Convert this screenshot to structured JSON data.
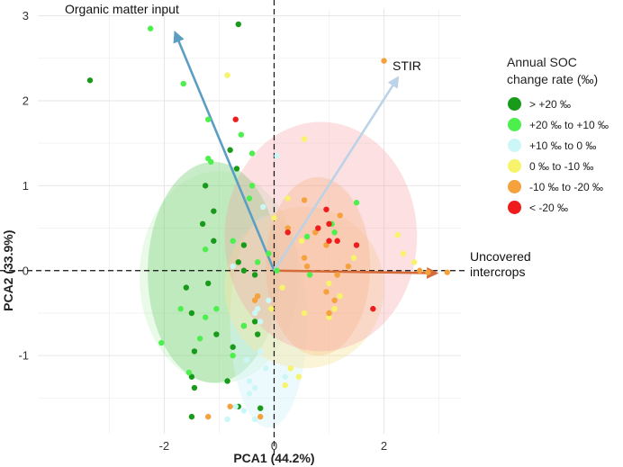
{
  "chart_data": {
    "type": "scatter",
    "subtype": "pca-biplot",
    "xlabel": "PCA1 (44.2%)",
    "ylabel": "PCA2 (33.9%)",
    "xlim": [
      -4.3,
      3.4
    ],
    "ylim": [
      -1.92,
      3.08
    ],
    "xticks": [
      -2,
      0,
      2
    ],
    "yticks": [
      -1,
      0,
      1,
      2,
      3
    ],
    "grid": true,
    "reference_lines": {
      "x": 0,
      "y": 0,
      "style": "dashed"
    },
    "legend": {
      "title_lines": [
        "Annual SOC",
        "change rate (‰)"
      ],
      "position": "right",
      "entries": [
        {
          "label": "> +20 ‰",
          "color": "#1a9a1a"
        },
        {
          "label": "+20 ‰ to +10 ‰",
          "color": "#4cef4c"
        },
        {
          "label": "+10 ‰ to 0 ‰",
          "color": "#ccf7f7"
        },
        {
          "label": "0 ‰ to -10 ‰",
          "color": "#f7f36a"
        },
        {
          "label": "-10 ‰ to -20 ‰",
          "color": "#f5a13c"
        },
        {
          "label": "< -20 ‰",
          "color": "#ee1c1c"
        }
      ]
    },
    "vectors": [
      {
        "label_lines": [
          "Organic matter input"
        ],
        "x0": 0,
        "y0": 0,
        "x1": -1.8,
        "y1": 2.8,
        "color": "#5b9ec3"
      },
      {
        "label_lines": [
          "STIR"
        ],
        "x0": 0,
        "y0": 0,
        "x1": 2.25,
        "y1": 2.27,
        "color": "#bcd2e6"
      },
      {
        "label_lines": [
          "Uncovered",
          "intercrops"
        ],
        "x0": 0,
        "y0": 0,
        "x1": 2.95,
        "y1": -0.03,
        "color": "#d66b3a"
      }
    ],
    "ellipses": [
      {
        "group": "> +20 ‰",
        "cx": -1.1,
        "cy": -0.02,
        "rx": 1.2,
        "ry": 1.3,
        "color": "#55c255",
        "opacity": 0.32
      },
      {
        "group": "+20 ‰ to +10 ‰",
        "cx": -1.0,
        "cy": -0.08,
        "rx": 1.45,
        "ry": 1.25,
        "color": "#9be89b",
        "opacity": 0.22
      },
      {
        "group": "+10 ‰ to 0 ‰",
        "cx": -0.1,
        "cy": -0.6,
        "rx": 0.7,
        "ry": 1.25,
        "color": "#d8f4fb",
        "opacity": 0.45
      },
      {
        "group": "0 ‰ to -10 ‰",
        "cx": 0.55,
        "cy": -0.2,
        "rx": 1.45,
        "ry": 0.95,
        "color": "#f6e7a6",
        "opacity": 0.45
      },
      {
        "group": "-10 ‰ to -20 ‰",
        "cx": 0.8,
        "cy": 0.05,
        "rx": 0.95,
        "ry": 1.05,
        "color": "#f7c58c",
        "opacity": 0.42
      },
      {
        "group": "< -20 ‰",
        "cx": 0.85,
        "cy": 0.4,
        "rx": 1.75,
        "ry": 1.35,
        "color": "#f6a0a6",
        "opacity": 0.32
      }
    ],
    "series": [
      {
        "name": "> +20 ‰",
        "color": "#1a9a1a",
        "points": [
          [
            -3.35,
            2.24
          ],
          [
            -0.65,
            2.9
          ],
          [
            -0.8,
            1.42
          ],
          [
            -0.68,
            1.2
          ],
          [
            -1.25,
            1.0
          ],
          [
            -1.1,
            0.7
          ],
          [
            -1.3,
            0.55
          ],
          [
            -1.1,
            0.35
          ],
          [
            -0.55,
            0.3
          ],
          [
            -0.55,
            0.0
          ],
          [
            -0.65,
            0.1
          ],
          [
            -0.35,
            -0.05
          ],
          [
            -1.6,
            -0.2
          ],
          [
            -1.2,
            -0.15
          ],
          [
            -1.5,
            -0.5
          ],
          [
            -1.45,
            -0.95
          ],
          [
            -1.5,
            -1.25
          ],
          [
            -1.45,
            -1.38
          ],
          [
            -0.75,
            -0.9
          ],
          [
            -0.35,
            -0.6
          ],
          [
            -0.3,
            -0.75
          ],
          [
            -0.85,
            -1.3
          ],
          [
            -0.65,
            -1.6
          ],
          [
            -0.25,
            -1.62
          ],
          [
            -1.5,
            -1.72
          ],
          [
            -0.55,
            -0.65
          ],
          [
            -1.05,
            -0.75
          ]
        ]
      },
      {
        "name": "+20 ‰ to +10 ‰",
        "color": "#4cef4c",
        "points": [
          [
            -2.25,
            2.85
          ],
          [
            -1.65,
            2.2
          ],
          [
            -1.2,
            1.78
          ],
          [
            -0.4,
            1.38
          ],
          [
            -1.2,
            1.32
          ],
          [
            -1.15,
            1.28
          ],
          [
            -0.6,
            1.6
          ],
          [
            -0.4,
            1.0
          ],
          [
            -0.45,
            0.85
          ],
          [
            -1.25,
            0.25
          ],
          [
            -0.75,
            0.35
          ],
          [
            -0.3,
            0.1
          ],
          [
            -1.7,
            -0.45
          ],
          [
            -1.25,
            -0.55
          ],
          [
            -1.05,
            -0.45
          ],
          [
            -0.55,
            -0.65
          ],
          [
            -2.05,
            -0.85
          ],
          [
            -0.75,
            -1.0
          ],
          [
            -1.55,
            -1.2
          ],
          [
            -1.35,
            -0.8
          ],
          [
            0.6,
            0.4
          ],
          [
            1.05,
            0.55
          ],
          [
            1.1,
            0.45
          ],
          [
            1.5,
            0.8
          ],
          [
            0.65,
            -0.05
          ],
          [
            0.05,
            0.0
          ],
          [
            -0.1,
            0.2
          ]
        ]
      },
      {
        "name": "+10 ‰ to 0 ‰",
        "color": "#ccf7f7",
        "points": [
          [
            0.05,
            1.35
          ],
          [
            -0.2,
            0.75
          ],
          [
            -0.75,
            0.05
          ],
          [
            -0.1,
            -0.35
          ],
          [
            -0.3,
            -0.45
          ],
          [
            -0.35,
            -0.5
          ],
          [
            -0.25,
            -0.6
          ],
          [
            -0.25,
            -0.95
          ],
          [
            -0.5,
            -1.05
          ],
          [
            -0.15,
            -1.15
          ],
          [
            0.2,
            -1.25
          ],
          [
            -0.45,
            -1.3
          ],
          [
            -0.35,
            -1.38
          ],
          [
            -0.45,
            -1.45
          ],
          [
            -0.7,
            -1.6
          ],
          [
            -0.55,
            -1.65
          ],
          [
            -0.85,
            -1.75
          ],
          [
            -0.35,
            -1.75
          ]
        ]
      },
      {
        "name": "0 ‰ to -10 ‰",
        "color": "#f7f36a",
        "points": [
          [
            -0.85,
            2.3
          ],
          [
            0.55,
            1.55
          ],
          [
            0.0,
            0.62
          ],
          [
            0.25,
            0.85
          ],
          [
            0.5,
            0.35
          ],
          [
            1.45,
            0.15
          ],
          [
            2.25,
            0.42
          ],
          [
            2.35,
            0.2
          ],
          [
            2.55,
            0.1
          ],
          [
            1.0,
            -0.15
          ],
          [
            1.2,
            -0.3
          ],
          [
            0.55,
            -0.5
          ],
          [
            0.15,
            -0.2
          ],
          [
            1.1,
            -0.45
          ],
          [
            -0.05,
            -0.45
          ],
          [
            0.2,
            -1.35
          ],
          [
            0.45,
            -1.25
          ],
          [
            0.3,
            -1.15
          ],
          [
            1.0,
            -0.55
          ]
        ]
      },
      {
        "name": "-10 ‰ to -20 ‰",
        "color": "#f5a13c",
        "points": [
          [
            2.0,
            2.47
          ],
          [
            0.55,
            0.83
          ],
          [
            0.25,
            0.5
          ],
          [
            1.2,
            0.65
          ],
          [
            0.75,
            0.45
          ],
          [
            0.95,
            0.3
          ],
          [
            0.55,
            0.15
          ],
          [
            0.6,
            0.05
          ],
          [
            1.15,
            -0.05
          ],
          [
            1.35,
            0.05
          ],
          [
            2.65,
            0.0
          ],
          [
            2.8,
            -0.02
          ],
          [
            3.15,
            -0.02
          ],
          [
            0.95,
            -0.25
          ],
          [
            1.0,
            -0.5
          ],
          [
            1.1,
            -0.35
          ],
          [
            -0.3,
            -0.3
          ],
          [
            -0.35,
            -0.35
          ],
          [
            -0.8,
            -1.6
          ],
          [
            -1.2,
            -1.72
          ],
          [
            -0.25,
            -1.72
          ]
        ]
      },
      {
        "name": "< -20 ‰",
        "color": "#ee1c1c",
        "points": [
          [
            -0.7,
            1.78
          ],
          [
            0.95,
            0.72
          ],
          [
            1.0,
            0.55
          ],
          [
            1.5,
            0.3
          ],
          [
            1.8,
            -0.45
          ],
          [
            0.25,
            0.45
          ],
          [
            1.15,
            0.35
          ],
          [
            0.8,
            0.5
          ],
          [
            1.0,
            0.35
          ]
        ]
      }
    ]
  }
}
